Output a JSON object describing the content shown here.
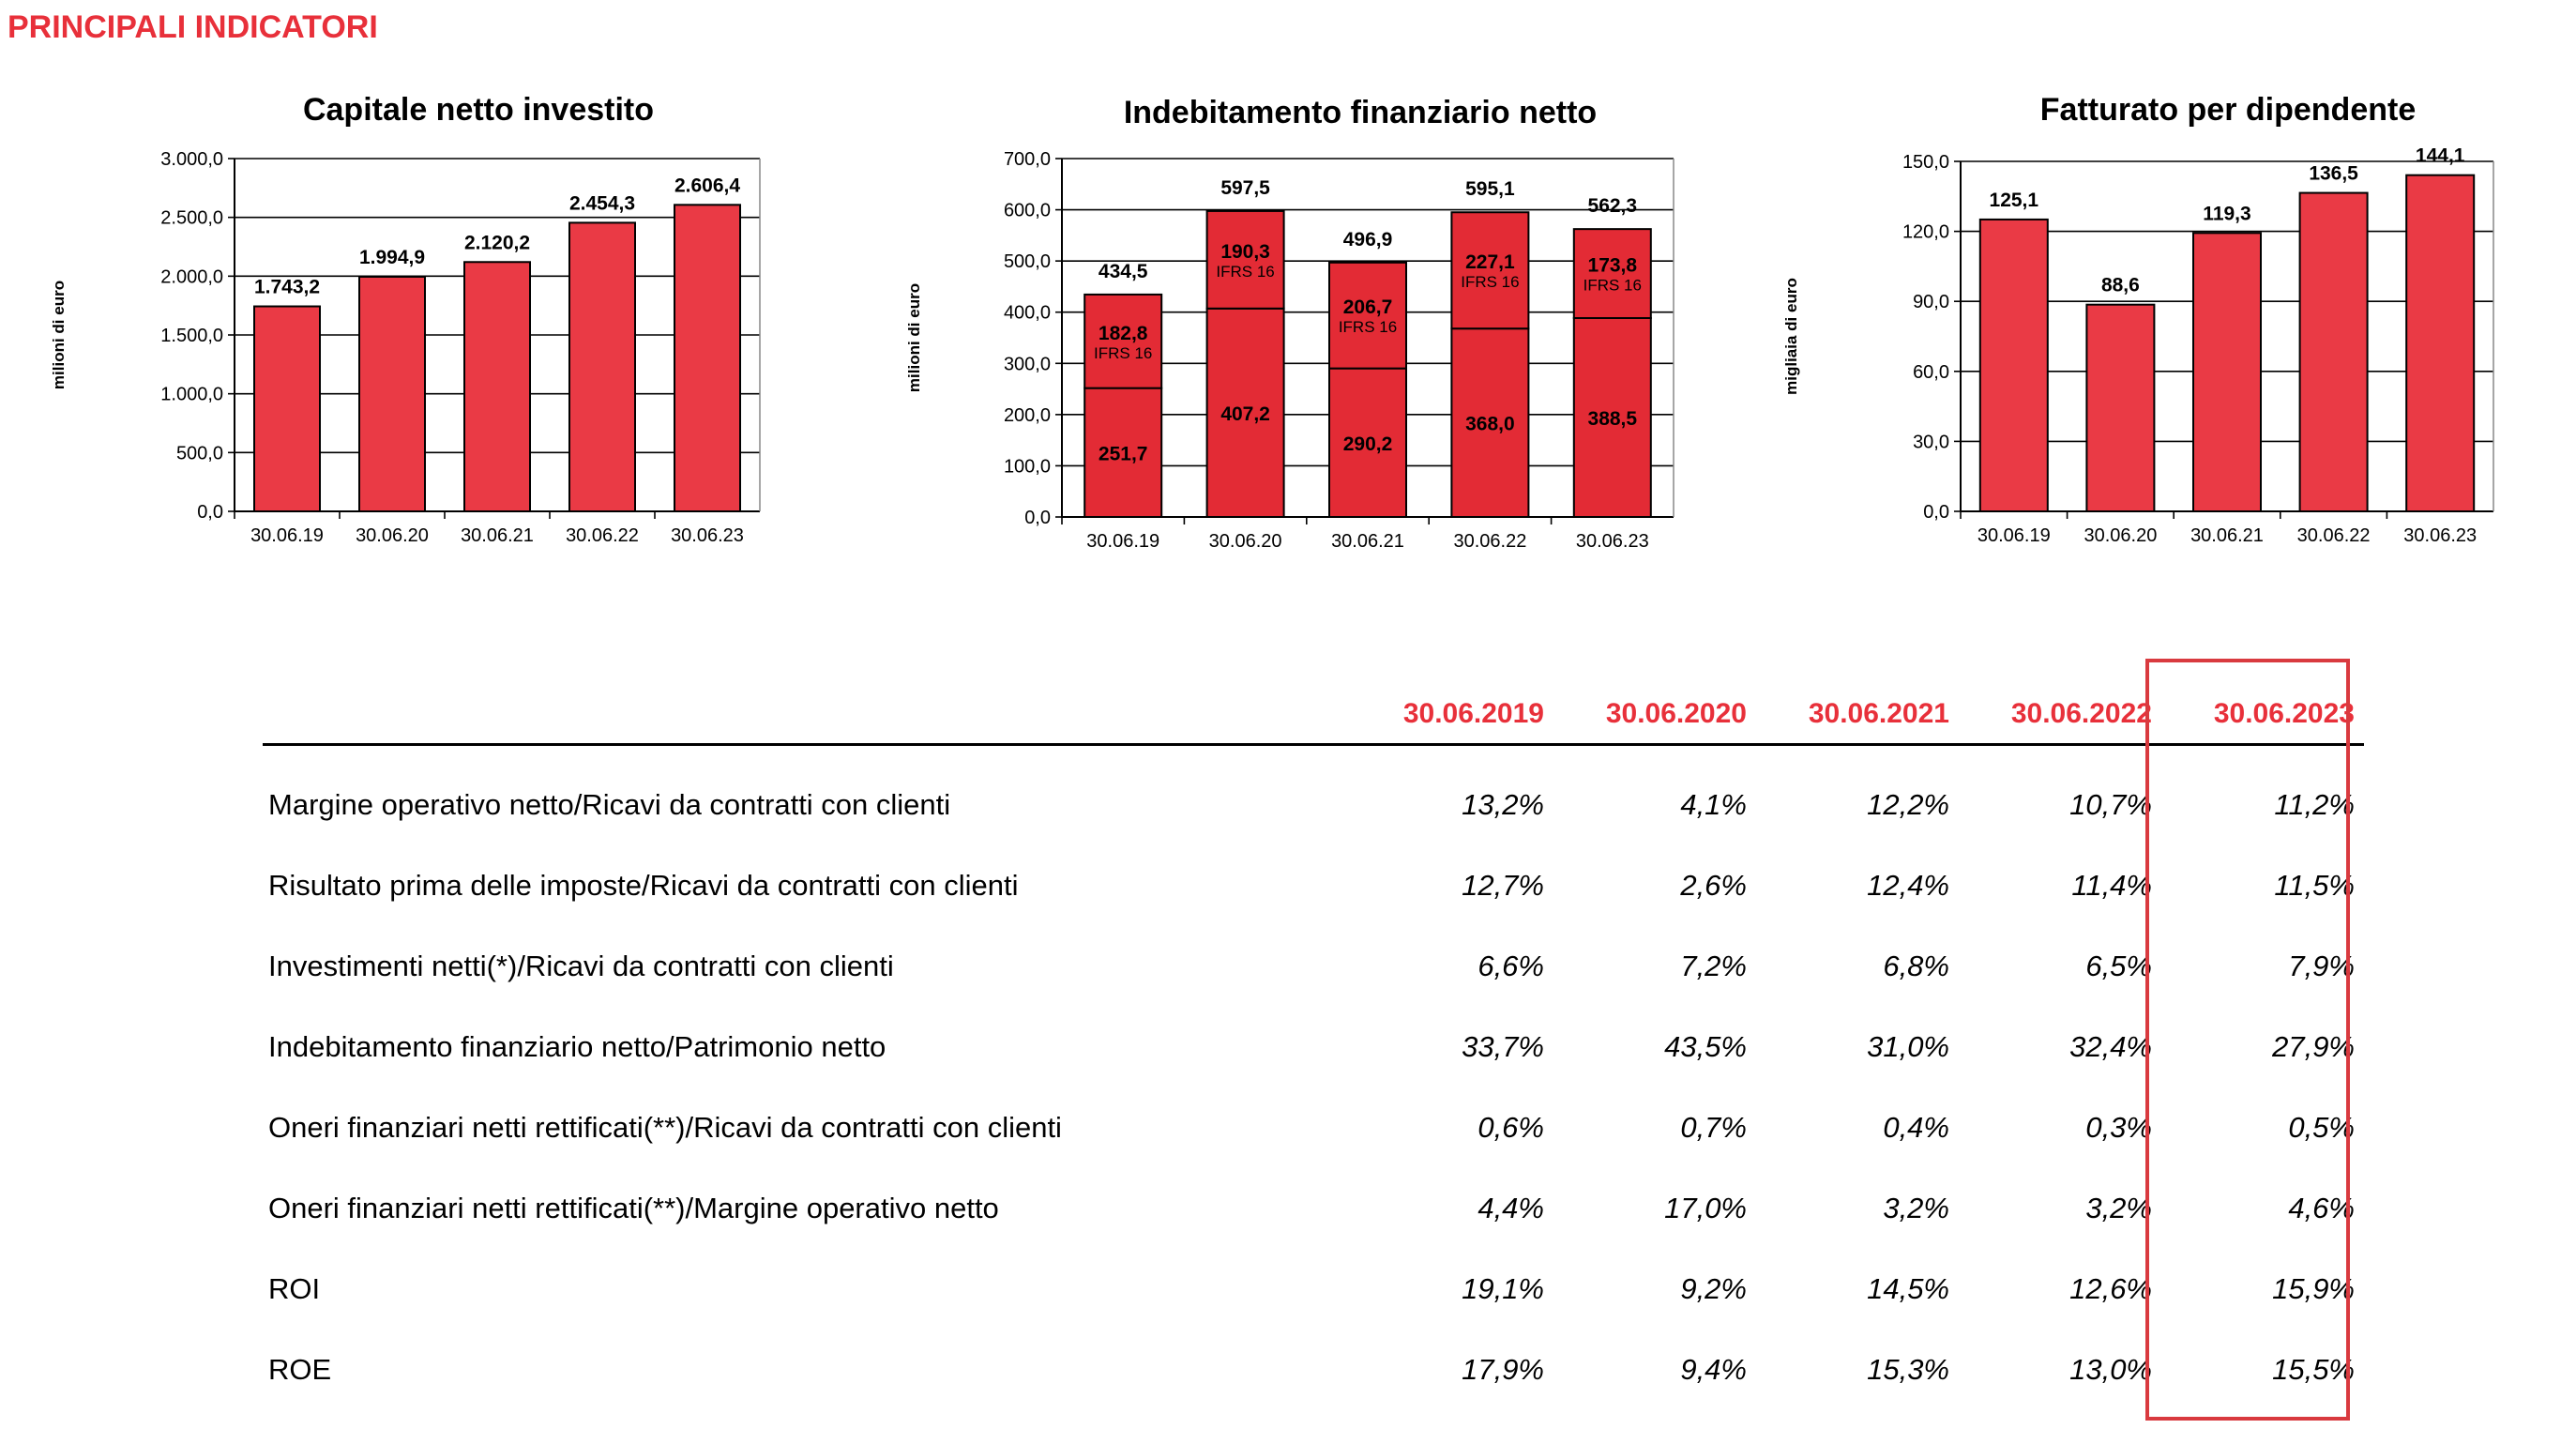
{
  "page": {
    "title": "PRINCIPALI INDICATORI"
  },
  "colors": {
    "accent": "#e8303a",
    "bar_fill": "#ea3a45",
    "bar_dark": "#e32b35",
    "border_highlight": "#d93a3f"
  },
  "chart_data": [
    {
      "type": "bar",
      "title": "Capitale netto investito",
      "ylabel": "milioni di euro",
      "xlabel": "",
      "categories": [
        "30.06.19",
        "30.06.20",
        "30.06.21",
        "30.06.22",
        "30.06.23"
      ],
      "values": [
        1743.2,
        1994.9,
        2120.2,
        2454.3,
        2606.4
      ],
      "value_labels": [
        "1.743,2",
        "1.994,9",
        "2.120,2",
        "2.454,3",
        "2.606,4"
      ],
      "ylim": [
        0,
        3000
      ],
      "yticks": [
        "0,0",
        "500,0",
        "1.000,0",
        "1.500,0",
        "2.000,0",
        "2.500,0",
        "3.000,0"
      ],
      "grid": true
    },
    {
      "type": "bar",
      "stacked": true,
      "title": "Indebitamento finanziario netto",
      "ylabel": "milioni di euro",
      "xlabel": "",
      "categories": [
        "30.06.19",
        "30.06.20",
        "30.06.21",
        "30.06.22",
        "30.06.23"
      ],
      "series": [
        {
          "values": [
            251.7,
            407.2,
            290.2,
            368.0,
            388.5
          ],
          "labels": [
            "251,7",
            "407,2",
            "290,2",
            "368,0",
            "388,5"
          ]
        },
        {
          "values": [
            182.8,
            190.3,
            206.7,
            227.1,
            173.8
          ],
          "labels": [
            "182,8",
            "190,3",
            "206,7",
            "227,1",
            "173,8"
          ],
          "annotation": "IFRS 16"
        }
      ],
      "totals": [
        434.5,
        597.5,
        496.9,
        595.1,
        562.3
      ],
      "total_labels": [
        "434,5",
        "597,5",
        "496,9",
        "595,1",
        "562,3"
      ],
      "ylim": [
        0,
        700
      ],
      "yticks": [
        "0,0",
        "100,0",
        "200,0",
        "300,0",
        "400,0",
        "500,0",
        "600,0",
        "700,0"
      ],
      "grid": true
    },
    {
      "type": "bar",
      "title": "Fatturato per dipendente",
      "ylabel": "migliaia di euro",
      "xlabel": "",
      "categories": [
        "30.06.19",
        "30.06.20",
        "30.06.21",
        "30.06.22",
        "30.06.23"
      ],
      "values": [
        125.1,
        88.6,
        119.3,
        136.5,
        144.1
      ],
      "value_labels": [
        "125,1",
        "88,6",
        "119,3",
        "136,5",
        "144,1"
      ],
      "ylim": [
        0,
        150
      ],
      "yticks": [
        "0,0",
        "30,0",
        "60,0",
        "90,0",
        "120,0",
        "150,0"
      ],
      "grid": true
    }
  ],
  "table": {
    "columns": [
      "30.06.2019",
      "30.06.2020",
      "30.06.2021",
      "30.06.2022",
      "30.06.2023"
    ],
    "rows": [
      {
        "label": "Margine operativo netto/Ricavi da contratti con clienti",
        "values": [
          "13,2%",
          "4,1%",
          "12,2%",
          "10,7%",
          "11,2%"
        ]
      },
      {
        "label": "Risultato prima delle imposte/Ricavi da contratti con clienti",
        "values": [
          "12,7%",
          "2,6%",
          "12,4%",
          "11,4%",
          "11,5%"
        ]
      },
      {
        "label": "Investimenti netti(*)/Ricavi da contratti con clienti",
        "values": [
          "6,6%",
          "7,2%",
          "6,8%",
          "6,5%",
          "7,9%"
        ]
      },
      {
        "label": "Indebitamento finanziario netto/Patrimonio netto",
        "values": [
          "33,7%",
          "43,5%",
          "31,0%",
          "32,4%",
          "27,9%"
        ]
      },
      {
        "label": "Oneri finanziari netti rettificati(**)/Ricavi da contratti con clienti",
        "values": [
          "0,6%",
          "0,7%",
          "0,4%",
          "0,3%",
          "0,5%"
        ]
      },
      {
        "label": "Oneri finanziari netti rettificati(**)/Margine operativo netto",
        "values": [
          "4,4%",
          "17,0%",
          "3,2%",
          "3,2%",
          "4,6%"
        ]
      },
      {
        "label": "ROI",
        "values": [
          "19,1%",
          "9,2%",
          "14,5%",
          "12,6%",
          "15,9%"
        ]
      },
      {
        "label": "ROE",
        "values": [
          "17,9%",
          "9,4%",
          "15,3%",
          "13,0%",
          "15,5%"
        ]
      }
    ]
  }
}
